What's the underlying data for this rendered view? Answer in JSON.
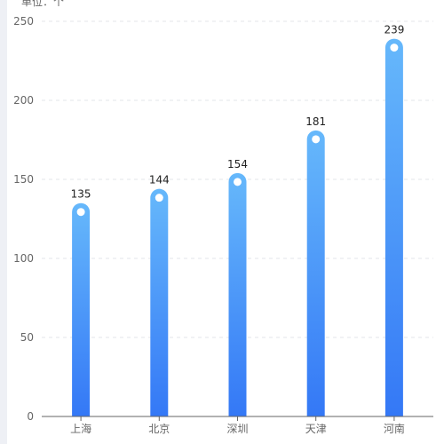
{
  "unit_label": "单位：个",
  "colors": {
    "bar_top": "#66b8fb",
    "bar_bottom": "#3478f6",
    "gridline": "#e3e6ea",
    "axis": "#666666",
    "tick_text": "#666666",
    "value_text": "#222222",
    "dot": "#ffffff",
    "side_strip": "#eef0f5"
  },
  "chart_data": {
    "type": "bar",
    "categories": [
      "上海",
      "北京",
      "深圳",
      "天津",
      "河南"
    ],
    "values": [
      135,
      144,
      154,
      181,
      239
    ],
    "y_ticks": [
      0,
      50,
      100,
      150,
      200,
      250
    ],
    "ylim": [
      0,
      250
    ],
    "grid": true,
    "grid_style": "dashed",
    "data_labels": true,
    "bar_style": "rounded-top-gradient-with-dot",
    "legend": "none"
  }
}
